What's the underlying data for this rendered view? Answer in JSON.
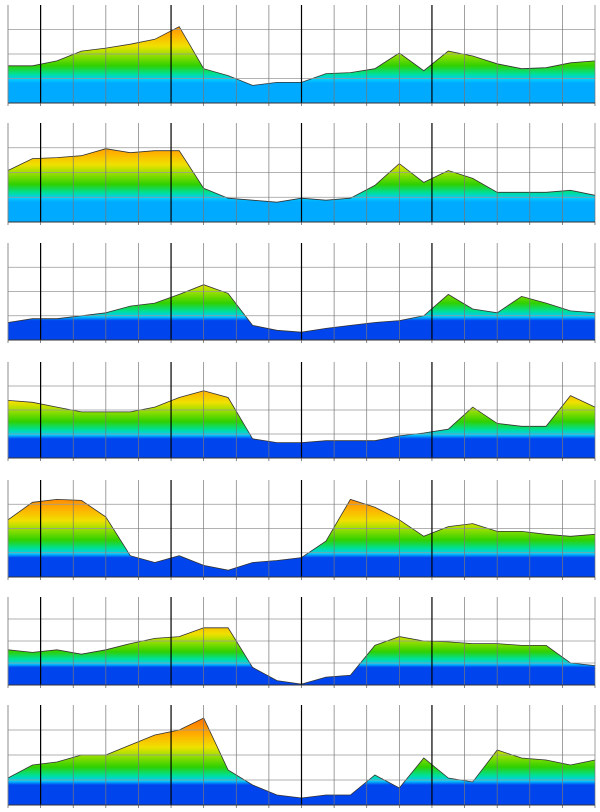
{
  "chart_data": [
    {
      "type": "area",
      "ylim": [
        0,
        100
      ],
      "grid": true,
      "low_color": "#00aaff",
      "values": [
        38,
        38,
        43,
        53,
        56,
        60,
        65,
        78,
        35,
        28,
        18,
        21,
        21,
        30,
        31,
        35,
        51,
        33,
        53,
        48,
        40,
        35,
        36,
        41,
        43
      ]
    },
    {
      "type": "area",
      "ylim": [
        0,
        100
      ],
      "grid": true,
      "low_color": "#00aaff",
      "values": [
        52,
        64,
        65,
        67,
        74,
        70,
        72,
        72,
        34,
        24,
        22,
        20,
        24,
        22,
        24,
        37,
        59,
        40,
        52,
        44,
        30,
        30,
        30,
        32,
        27
      ]
    },
    {
      "type": "area",
      "ylim": [
        0,
        100
      ],
      "grid": true,
      "low_color": "#0044ee",
      "values": [
        18,
        22,
        22,
        25,
        28,
        35,
        38,
        47,
        57,
        48,
        15,
        10,
        8,
        12,
        15,
        18,
        20,
        25,
        47,
        32,
        28,
        45,
        38,
        30,
        28
      ]
    },
    {
      "type": "area",
      "ylim": [
        0,
        100
      ],
      "grid": true,
      "low_color": "#0044ee",
      "values": [
        60,
        58,
        53,
        48,
        48,
        48,
        53,
        63,
        70,
        63,
        20,
        16,
        16,
        18,
        18,
        18,
        23,
        26,
        30,
        53,
        36,
        33,
        33,
        65,
        53
      ]
    },
    {
      "type": "area",
      "ylim": [
        0,
        100
      ],
      "grid": true,
      "low_color": "#0044ee",
      "values": [
        59,
        77,
        80,
        79,
        62,
        22,
        15,
        22,
        12,
        7,
        15,
        17,
        20,
        37,
        80,
        72,
        59,
        42,
        52,
        55,
        47,
        47,
        44,
        42,
        44
      ]
    },
    {
      "type": "area",
      "ylim": [
        0,
        100
      ],
      "grid": true,
      "low_color": "#0044ee",
      "values": [
        40,
        37,
        40,
        35,
        40,
        47,
        53,
        55,
        65,
        65,
        20,
        5,
        1,
        9,
        11,
        45,
        55,
        50,
        49,
        47,
        47,
        45,
        45,
        25,
        22
      ]
    },
    {
      "type": "area",
      "ylim": [
        0,
        100
      ],
      "grid": true,
      "low_color": "#0044ee",
      "values": [
        27,
        40,
        43,
        50,
        50,
        60,
        70,
        75,
        87,
        35,
        20,
        10,
        7,
        10,
        10,
        30,
        17,
        47,
        27,
        23,
        55,
        47,
        45,
        40,
        45
      ]
    }
  ]
}
